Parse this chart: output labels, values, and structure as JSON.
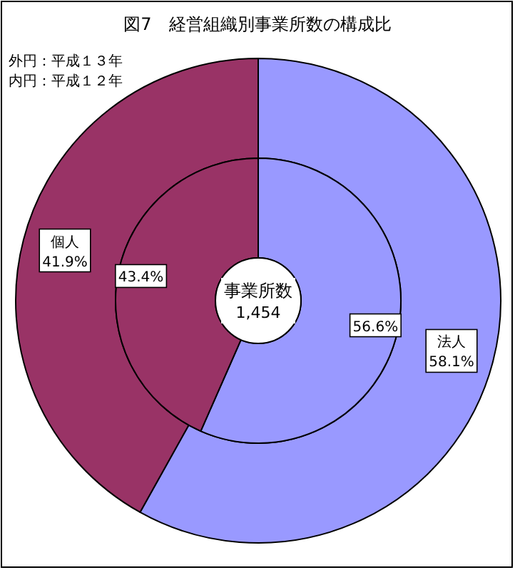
{
  "chart_data": {
    "type": "donut",
    "title": "図7　経営組織別事業所数の構成比",
    "categories": [
      "法人",
      "個人"
    ],
    "colors": [
      "#9999ff",
      "#993366"
    ],
    "series": [
      {
        "values": [
          58.1,
          41.9
        ],
        "value_labels": [
          "58.1%",
          "41.9%"
        ]
      },
      {
        "values": [
          56.6,
          43.4
        ],
        "value_labels": [
          "56.6%",
          "43.4%"
        ]
      }
    ],
    "annotations": [
      "外円：平成１３年",
      "内円：平成１２年",
      "事業所数",
      "1,454"
    ]
  }
}
